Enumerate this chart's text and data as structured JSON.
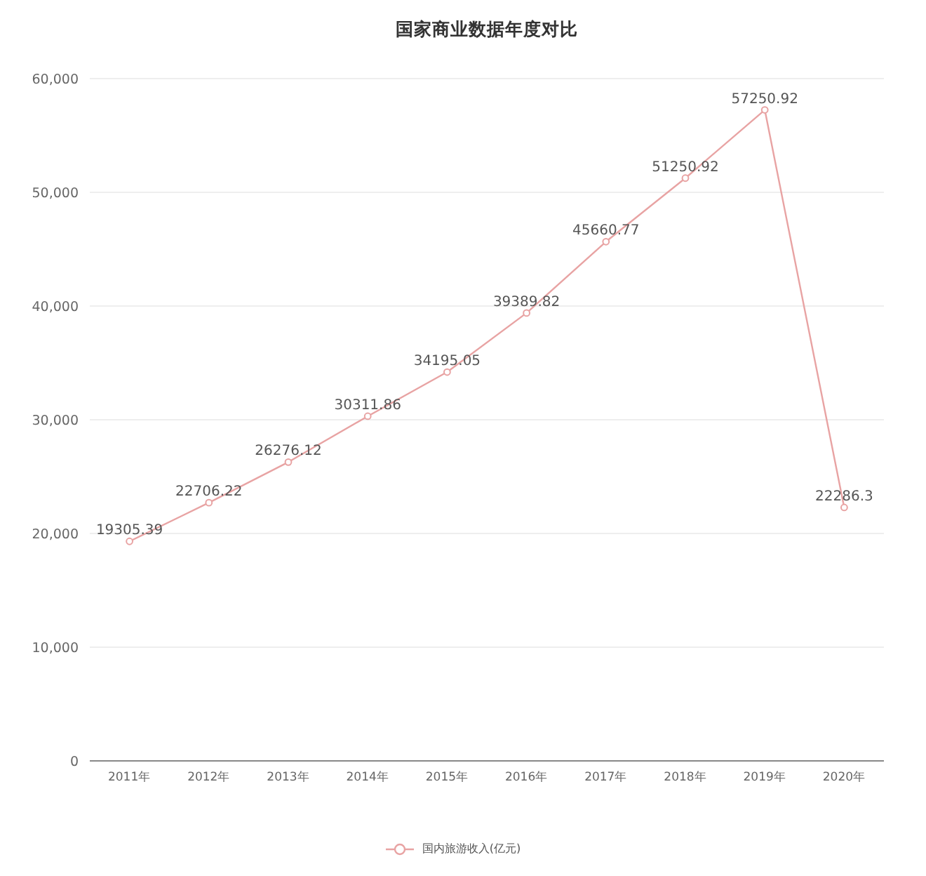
{
  "chart_data": {
    "type": "line",
    "title": "国家商业数据年度对比",
    "categories": [
      "2011年",
      "2012年",
      "2013年",
      "2014年",
      "2015年",
      "2016年",
      "2017年",
      "2018年",
      "2019年",
      "2020年"
    ],
    "series": [
      {
        "name": "国内旅游收入(亿元)",
        "color": "#e8a3a3",
        "values": [
          19305.39,
          22706.22,
          26276.12,
          30311.86,
          34195.05,
          39389.82,
          45660.77,
          51250.92,
          57250.92,
          22286.3
        ]
      }
    ],
    "ylim": [
      0,
      60000
    ],
    "yticks": [
      0,
      {
        "value": 10000,
        "label": "10,000"
      },
      {
        "value": 20000,
        "label": "20,000"
      },
      {
        "value": 30000,
        "label": "30,000"
      },
      {
        "value": 40000,
        "label": "40,000"
      },
      {
        "value": 50000,
        "label": "50,000"
      },
      {
        "value": 60000,
        "label": "60,000"
      }
    ],
    "grid": "y",
    "legend": "bottom",
    "marker": "circle",
    "line_style": "solid",
    "data_labels": true
  }
}
